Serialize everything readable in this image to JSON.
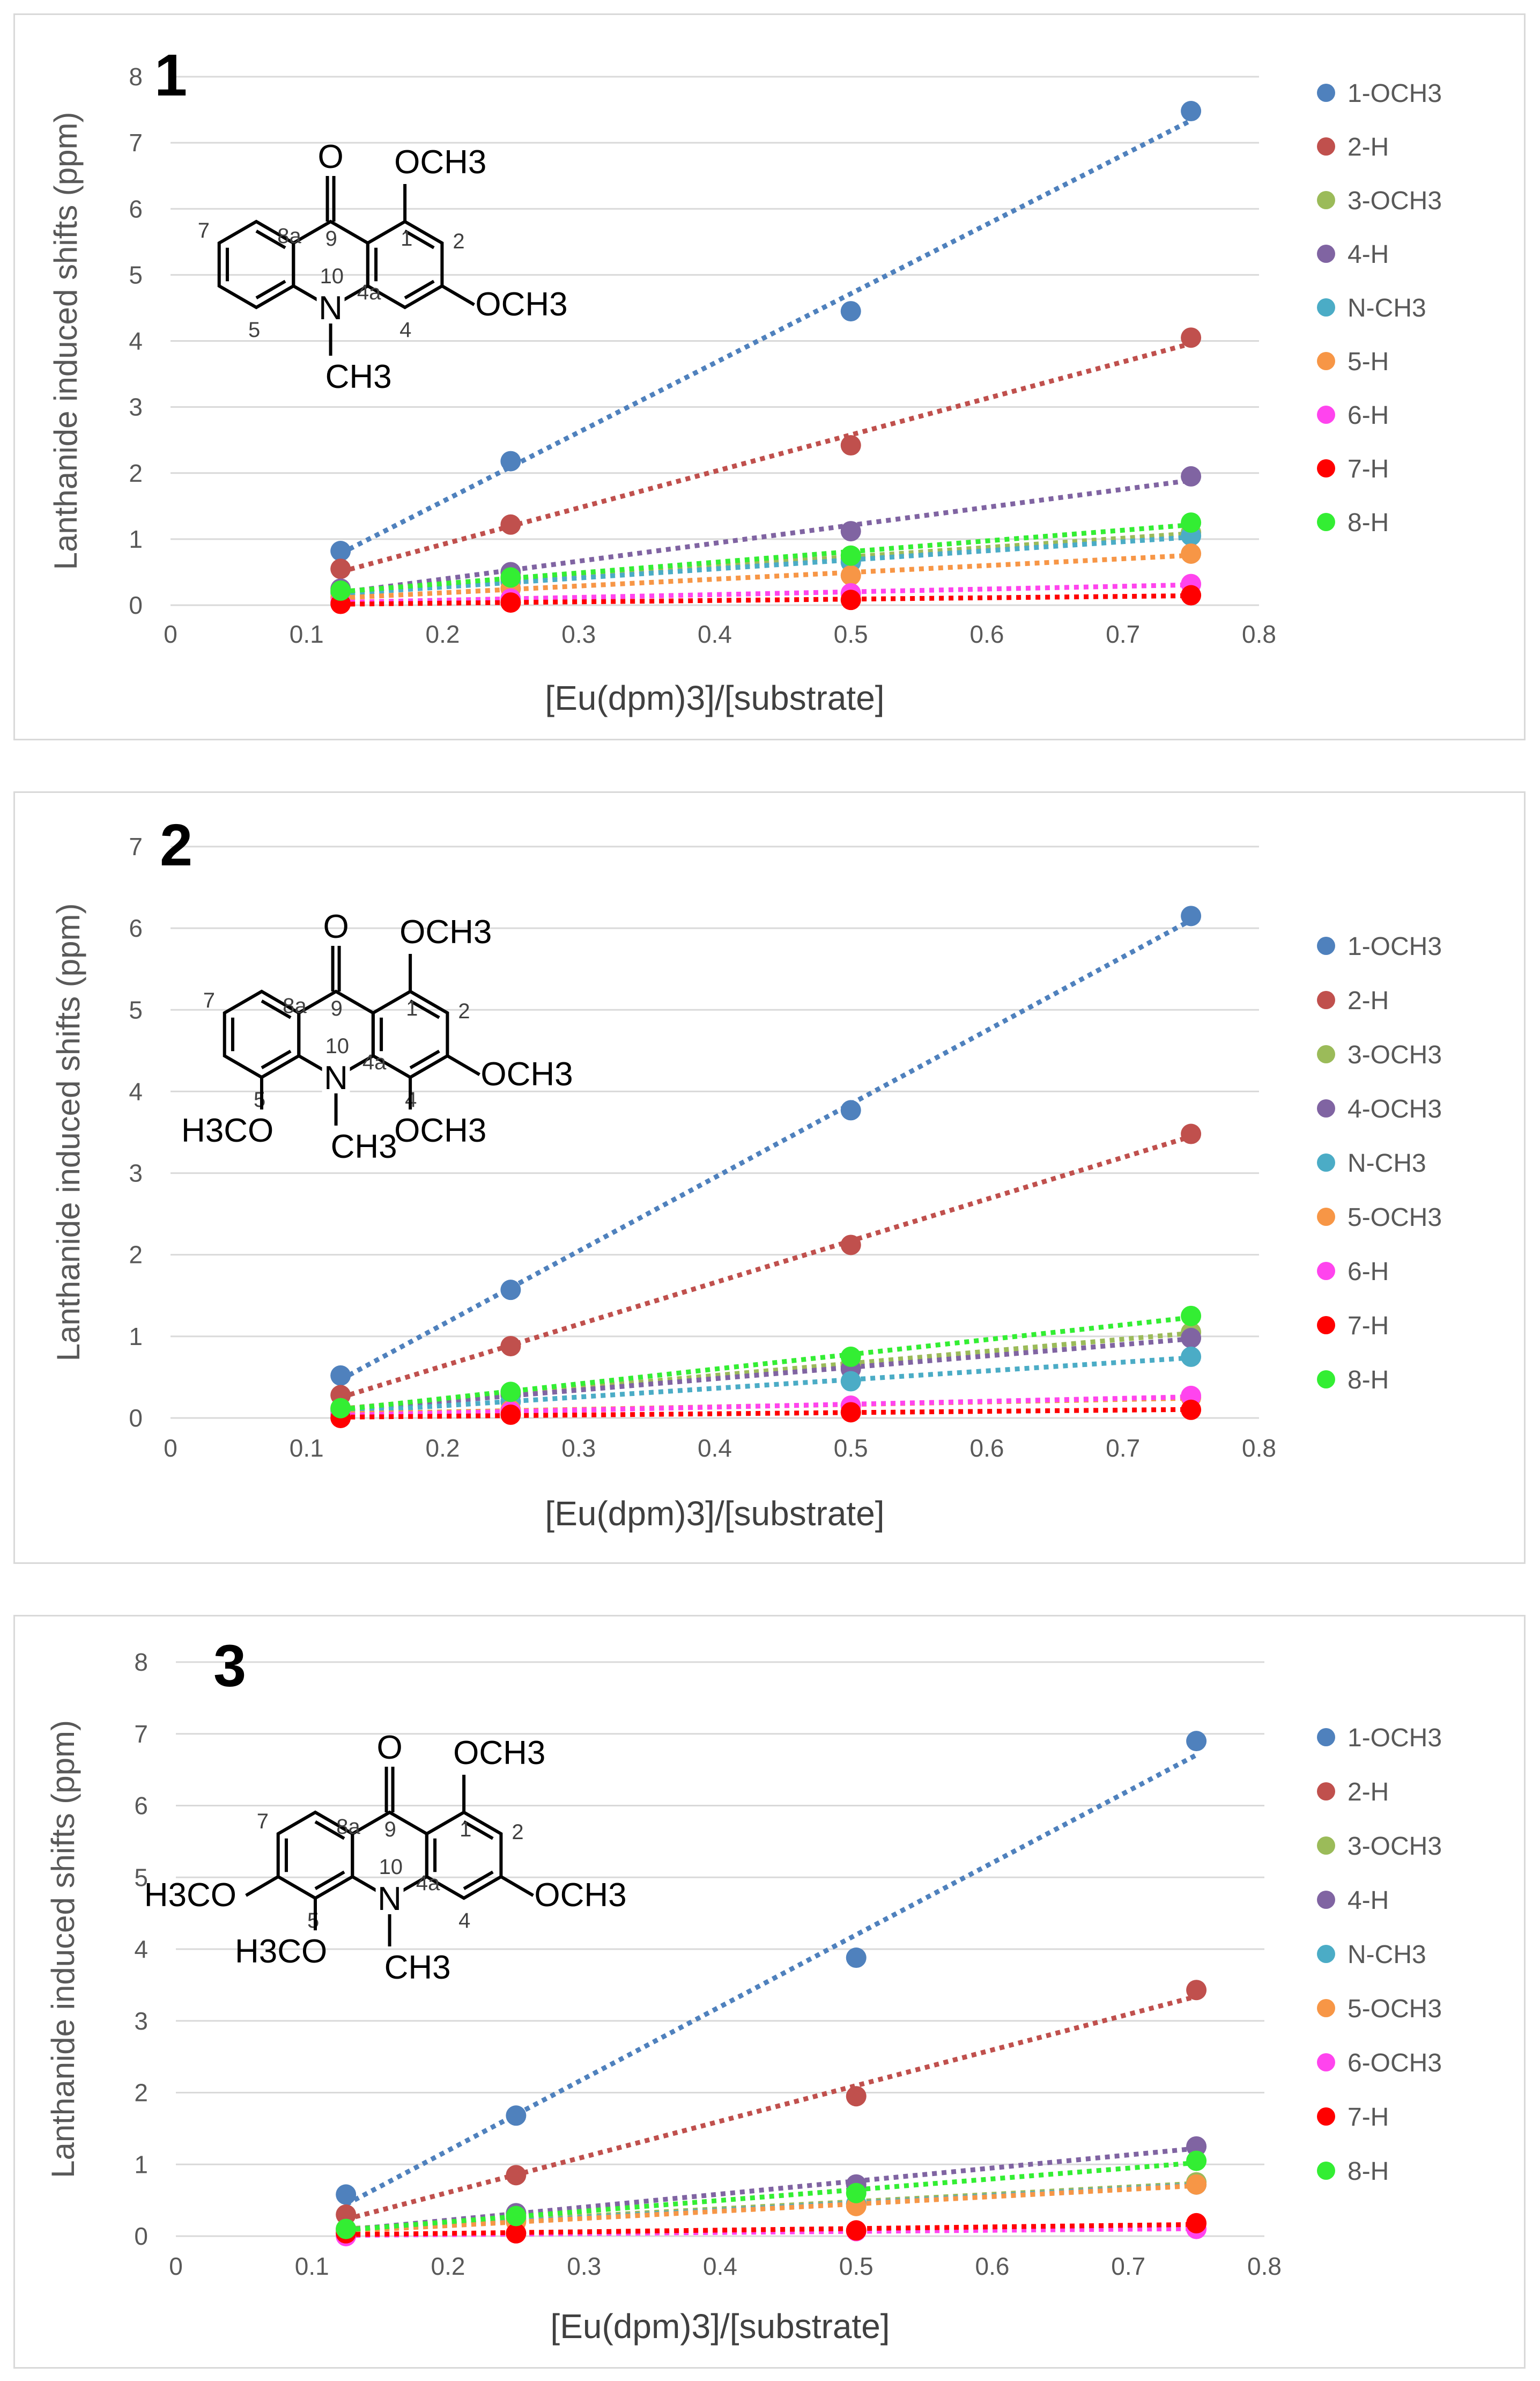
{
  "chart_data": [
    {
      "type": "scatter",
      "compound_label": "1",
      "xlabel": "[Eu(dpm)3]/[substrate]",
      "ylabel": "Lanthanide induced shifts (ppm)",
      "xlim": [
        0,
        0.8
      ],
      "ylim": [
        0,
        8
      ],
      "x_ticks": [
        "0",
        "0.1",
        "0.2",
        "0.3",
        "0.4",
        "0.5",
        "0.6",
        "0.7",
        "0.8"
      ],
      "y_ticks": [
        "0",
        "1",
        "2",
        "3",
        "4",
        "5",
        "6",
        "7",
        "8"
      ],
      "trendline": "linear, dotted",
      "x": [
        0.125,
        0.25,
        0.5,
        0.75
      ],
      "series": [
        {
          "name": "1-OCH3",
          "color": "#4f81bd",
          "values": [
            0.82,
            2.18,
            4.45,
            7.48
          ]
        },
        {
          "name": "2-H",
          "color": "#c0504d",
          "values": [
            0.55,
            1.22,
            2.42,
            4.05
          ]
        },
        {
          "name": "3-OCH3",
          "color": "#9bbb59",
          "values": [
            0.2,
            0.4,
            0.7,
            1.1
          ]
        },
        {
          "name": "4-H",
          "color": "#8064a2",
          "values": [
            0.25,
            0.5,
            1.12,
            1.95
          ]
        },
        {
          "name": "N-CH3",
          "color": "#4bacc6",
          "values": [
            0.18,
            0.35,
            0.65,
            1.05
          ]
        },
        {
          "name": "5-H",
          "color": "#f79646",
          "values": [
            0.12,
            0.25,
            0.45,
            0.78
          ]
        },
        {
          "name": "6-H",
          "color": "#ff44ee",
          "values": [
            0.05,
            0.1,
            0.18,
            0.32
          ]
        },
        {
          "name": "7-H",
          "color": "#ff0000",
          "values": [
            0.02,
            0.04,
            0.08,
            0.15
          ]
        },
        {
          "name": "8-H",
          "color": "#33ee33",
          "values": [
            0.22,
            0.42,
            0.75,
            1.25
          ]
        }
      ],
      "structure": {
        "carbonyl_o": "O",
        "n": "N",
        "sub_top": "OCH3",
        "sub_right": "OCH3",
        "sub_bottom": "CH3",
        "sub_left_top": "",
        "sub_left_bottom": "",
        "positions": {
          "p9": "9",
          "p8a": "8a",
          "p1": "1",
          "p2": "2",
          "p7": "7",
          "p10": "10",
          "p4a": "4a",
          "p5": "5",
          "p4": "4"
        }
      }
    },
    {
      "type": "scatter",
      "compound_label": "2",
      "xlabel": "[Eu(dpm)3]/[substrate]",
      "ylabel": "Lanthanide induced shifts (ppm)",
      "xlim": [
        0,
        0.8
      ],
      "ylim": [
        0,
        7
      ],
      "x_ticks": [
        "0",
        "0.1",
        "0.2",
        "0.3",
        "0.4",
        "0.5",
        "0.6",
        "0.7",
        "0.8"
      ],
      "y_ticks": [
        "0",
        "1",
        "2",
        "3",
        "4",
        "5",
        "6",
        "7"
      ],
      "trendline": "linear, dotted",
      "x": [
        0.125,
        0.25,
        0.5,
        0.75
      ],
      "series": [
        {
          "name": "1-OCH3",
          "color": "#4f81bd",
          "values": [
            0.52,
            1.57,
            3.77,
            6.15
          ]
        },
        {
          "name": "2-H",
          "color": "#c0504d",
          "values": [
            0.28,
            0.88,
            2.12,
            3.48
          ]
        },
        {
          "name": "3-OCH3",
          "color": "#9bbb59",
          "values": [
            0.12,
            0.3,
            0.65,
            1.05
          ]
        },
        {
          "name": "4-OCH3",
          "color": "#8064a2",
          "values": [
            0.1,
            0.28,
            0.6,
            0.98
          ]
        },
        {
          "name": "N-CH3",
          "color": "#4bacc6",
          "values": [
            0.08,
            0.2,
            0.45,
            0.75
          ]
        },
        {
          "name": "5-OCH3",
          "color": "#f79646",
          "values": [
            0.05,
            0.1,
            0.15,
            0.25
          ]
        },
        {
          "name": "6-H",
          "color": "#ff44ee",
          "values": [
            0.04,
            0.08,
            0.15,
            0.27
          ]
        },
        {
          "name": "7-H",
          "color": "#ff0000",
          "values": [
            0.0,
            0.04,
            0.07,
            0.1
          ]
        },
        {
          "name": "8-H",
          "color": "#33ee33",
          "values": [
            0.12,
            0.32,
            0.75,
            1.25
          ]
        }
      ],
      "structure": {
        "carbonyl_o": "O",
        "n": "N",
        "sub_top": "OCH3",
        "sub_right": "OCH3",
        "sub_bottom": "CH3",
        "sub_left_top": "",
        "sub_left_bottom": "H3CO",
        "sub_bottom_right": "OCH3",
        "positions": {
          "p9": "9",
          "p8a": "8a",
          "p1": "1",
          "p2": "2",
          "p7": "7",
          "p10": "10",
          "p4a": "4a",
          "p5": "5",
          "p4": "4"
        }
      }
    },
    {
      "type": "scatter",
      "compound_label": "3",
      "xlabel": "[Eu(dpm)3]/[substrate]",
      "ylabel": "Lanthanide induced shifts (ppm)",
      "xlim": [
        0,
        0.8
      ],
      "ylim": [
        0,
        8
      ],
      "x_ticks": [
        "0",
        "0.1",
        "0.2",
        "0.3",
        "0.4",
        "0.5",
        "0.6",
        "0.7",
        "0.8"
      ],
      "y_ticks": [
        "0",
        "1",
        "2",
        "3",
        "4",
        "5",
        "6",
        "7",
        "8"
      ],
      "trendline": "linear, dotted",
      "x": [
        0.125,
        0.25,
        0.5,
        0.75
      ],
      "series": [
        {
          "name": "1-OCH3",
          "color": "#4f81bd",
          "values": [
            0.58,
            1.68,
            3.88,
            6.9
          ]
        },
        {
          "name": "2-H",
          "color": "#c0504d",
          "values": [
            0.3,
            0.85,
            1.95,
            3.43
          ]
        },
        {
          "name": "3-OCH3",
          "color": "#9bbb59",
          "values": [
            0.1,
            0.25,
            0.45,
            0.75
          ]
        },
        {
          "name": "4-H",
          "color": "#8064a2",
          "values": [
            0.1,
            0.32,
            0.72,
            1.25
          ]
        },
        {
          "name": "N-CH3",
          "color": "#4bacc6",
          "values": [
            0.08,
            0.22,
            0.45,
            0.72
          ]
        },
        {
          "name": "5-OCH3",
          "color": "#f79646",
          "values": [
            0.08,
            0.2,
            0.42,
            0.72
          ]
        },
        {
          "name": "6-OCH3",
          "color": "#ff44ee",
          "values": [
            0.0,
            0.04,
            0.07,
            0.1
          ]
        },
        {
          "name": "7-H",
          "color": "#ff0000",
          "values": [
            0.04,
            0.04,
            0.08,
            0.18
          ]
        },
        {
          "name": "8-H",
          "color": "#33ee33",
          "values": [
            0.1,
            0.28,
            0.6,
            1.05
          ]
        }
      ],
      "structure": {
        "carbonyl_o": "O",
        "n": "N",
        "sub_top": "OCH3",
        "sub_right": "OCH3",
        "sub_bottom": "CH3",
        "sub_left_top": "H3CO",
        "sub_left_bottom": "H3CO",
        "positions": {
          "p9": "9",
          "p8a": "8a",
          "p1": "1",
          "p2": "2",
          "p7": "7",
          "p10": "10",
          "p4a": "4a",
          "p5": "5",
          "p4": "4"
        }
      }
    }
  ]
}
